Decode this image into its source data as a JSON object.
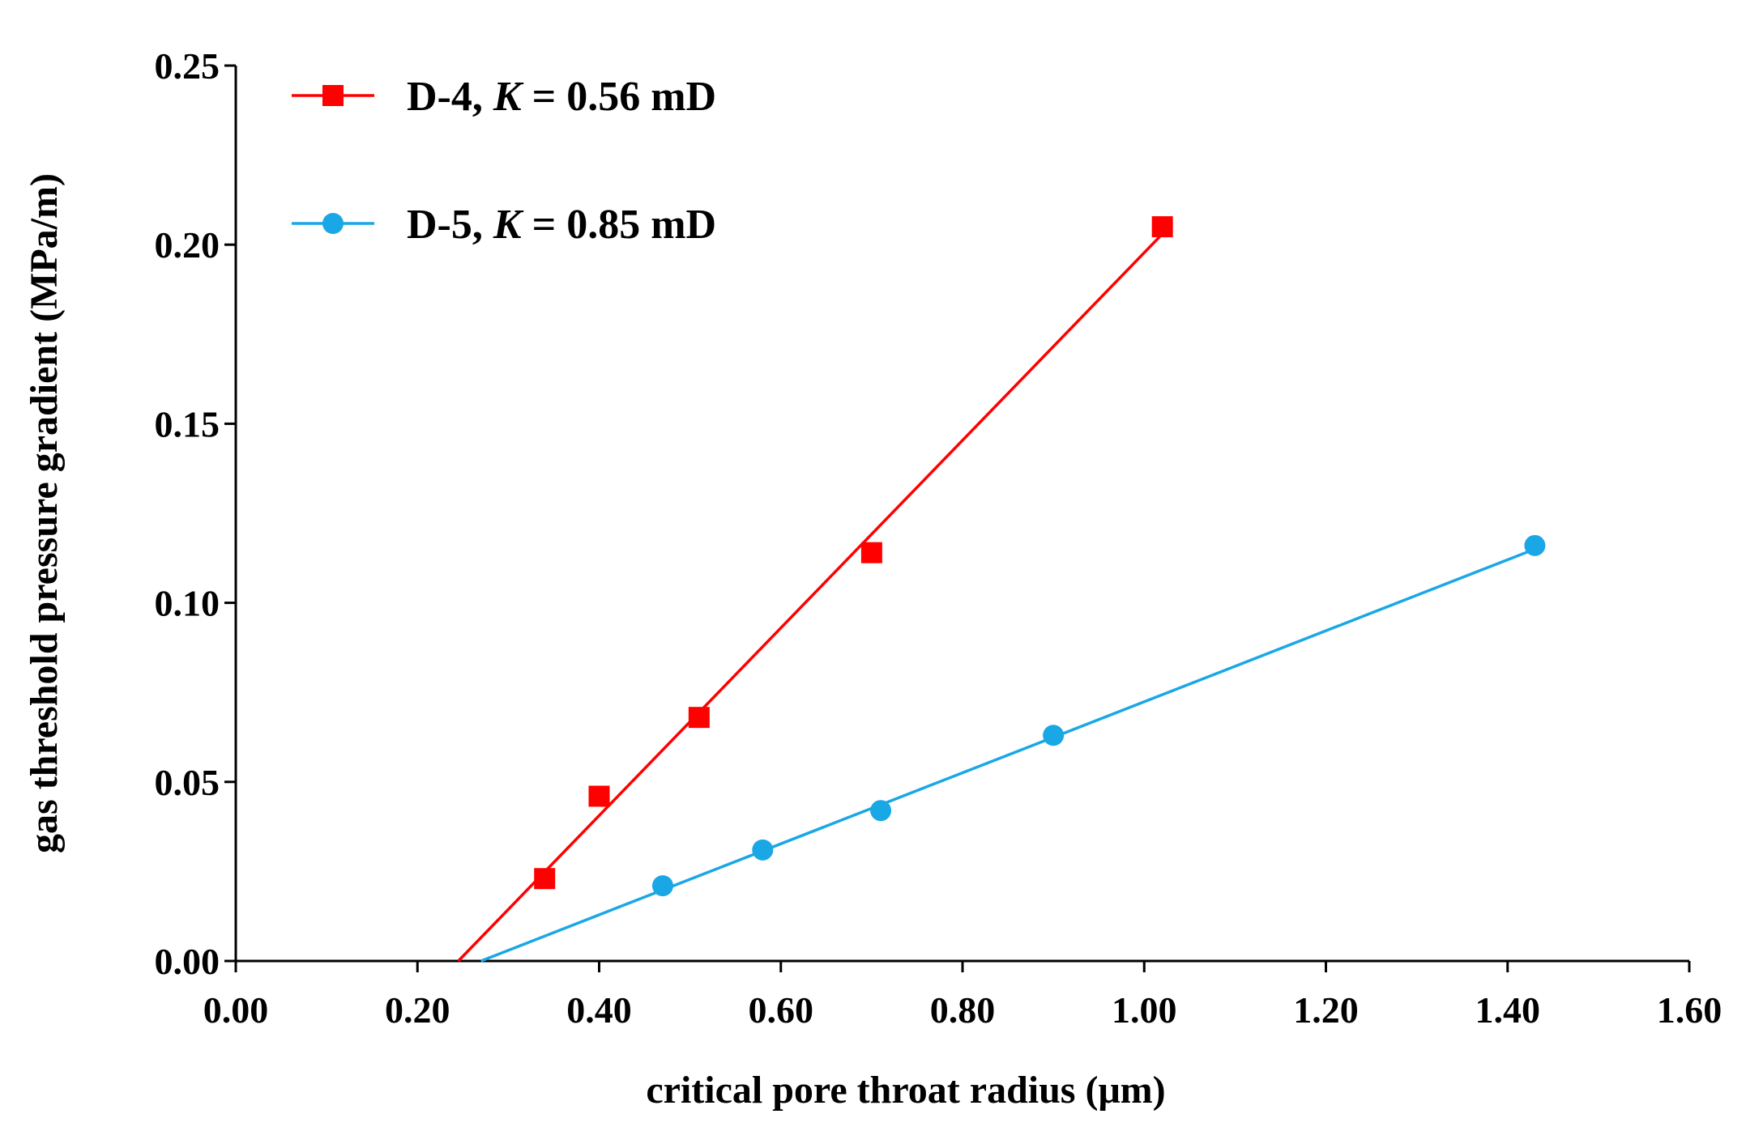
{
  "chart_data": {
    "type": "scatter",
    "title": "",
    "xlabel": "critical pore throat radius (μm)",
    "ylabel": "gas threshold pressure gradient (MPa/m)",
    "xlim": [
      0.0,
      1.6
    ],
    "ylim": [
      0.0,
      0.25
    ],
    "x_ticks": [
      0.0,
      0.2,
      0.4,
      0.6,
      0.8,
      1.0,
      1.2,
      1.4,
      1.6
    ],
    "x_tick_labels": [
      "0.00",
      "0.20",
      "0.40",
      "0.60",
      "0.80",
      "1.00",
      "1.20",
      "1.40",
      "1.60"
    ],
    "y_ticks": [
      0.0,
      0.05,
      0.1,
      0.15,
      0.2,
      0.25
    ],
    "y_tick_labels": [
      "0.00",
      "0.05",
      "0.10",
      "0.15",
      "0.20",
      "0.25"
    ],
    "grid": false,
    "legend_position": "top-left",
    "series": [
      {
        "name": "D-4",
        "legend_prefix": "D-4, ",
        "legend_k": "K",
        "legend_suffix": " = 0.56 mD",
        "marker": "square",
        "color": "#ff0000",
        "x": [
          0.34,
          0.4,
          0.51,
          0.7,
          1.02
        ],
        "y": [
          0.023,
          0.046,
          0.068,
          0.114,
          0.205
        ],
        "fit_line": {
          "x": [
            0.245,
            1.02
          ],
          "y": [
            0.0,
            0.203
          ]
        }
      },
      {
        "name": "D-5",
        "legend_prefix": "D-5, ",
        "legend_k": "K",
        "legend_suffix": " = 0.85 mD",
        "marker": "circle",
        "color": "#1aa7e6",
        "x": [
          0.47,
          0.58,
          0.71,
          0.9,
          1.43
        ],
        "y": [
          0.021,
          0.031,
          0.042,
          0.063,
          0.116
        ],
        "fit_line": {
          "x": [
            0.27,
            1.43
          ],
          "y": [
            0.0,
            0.115
          ]
        }
      }
    ]
  }
}
